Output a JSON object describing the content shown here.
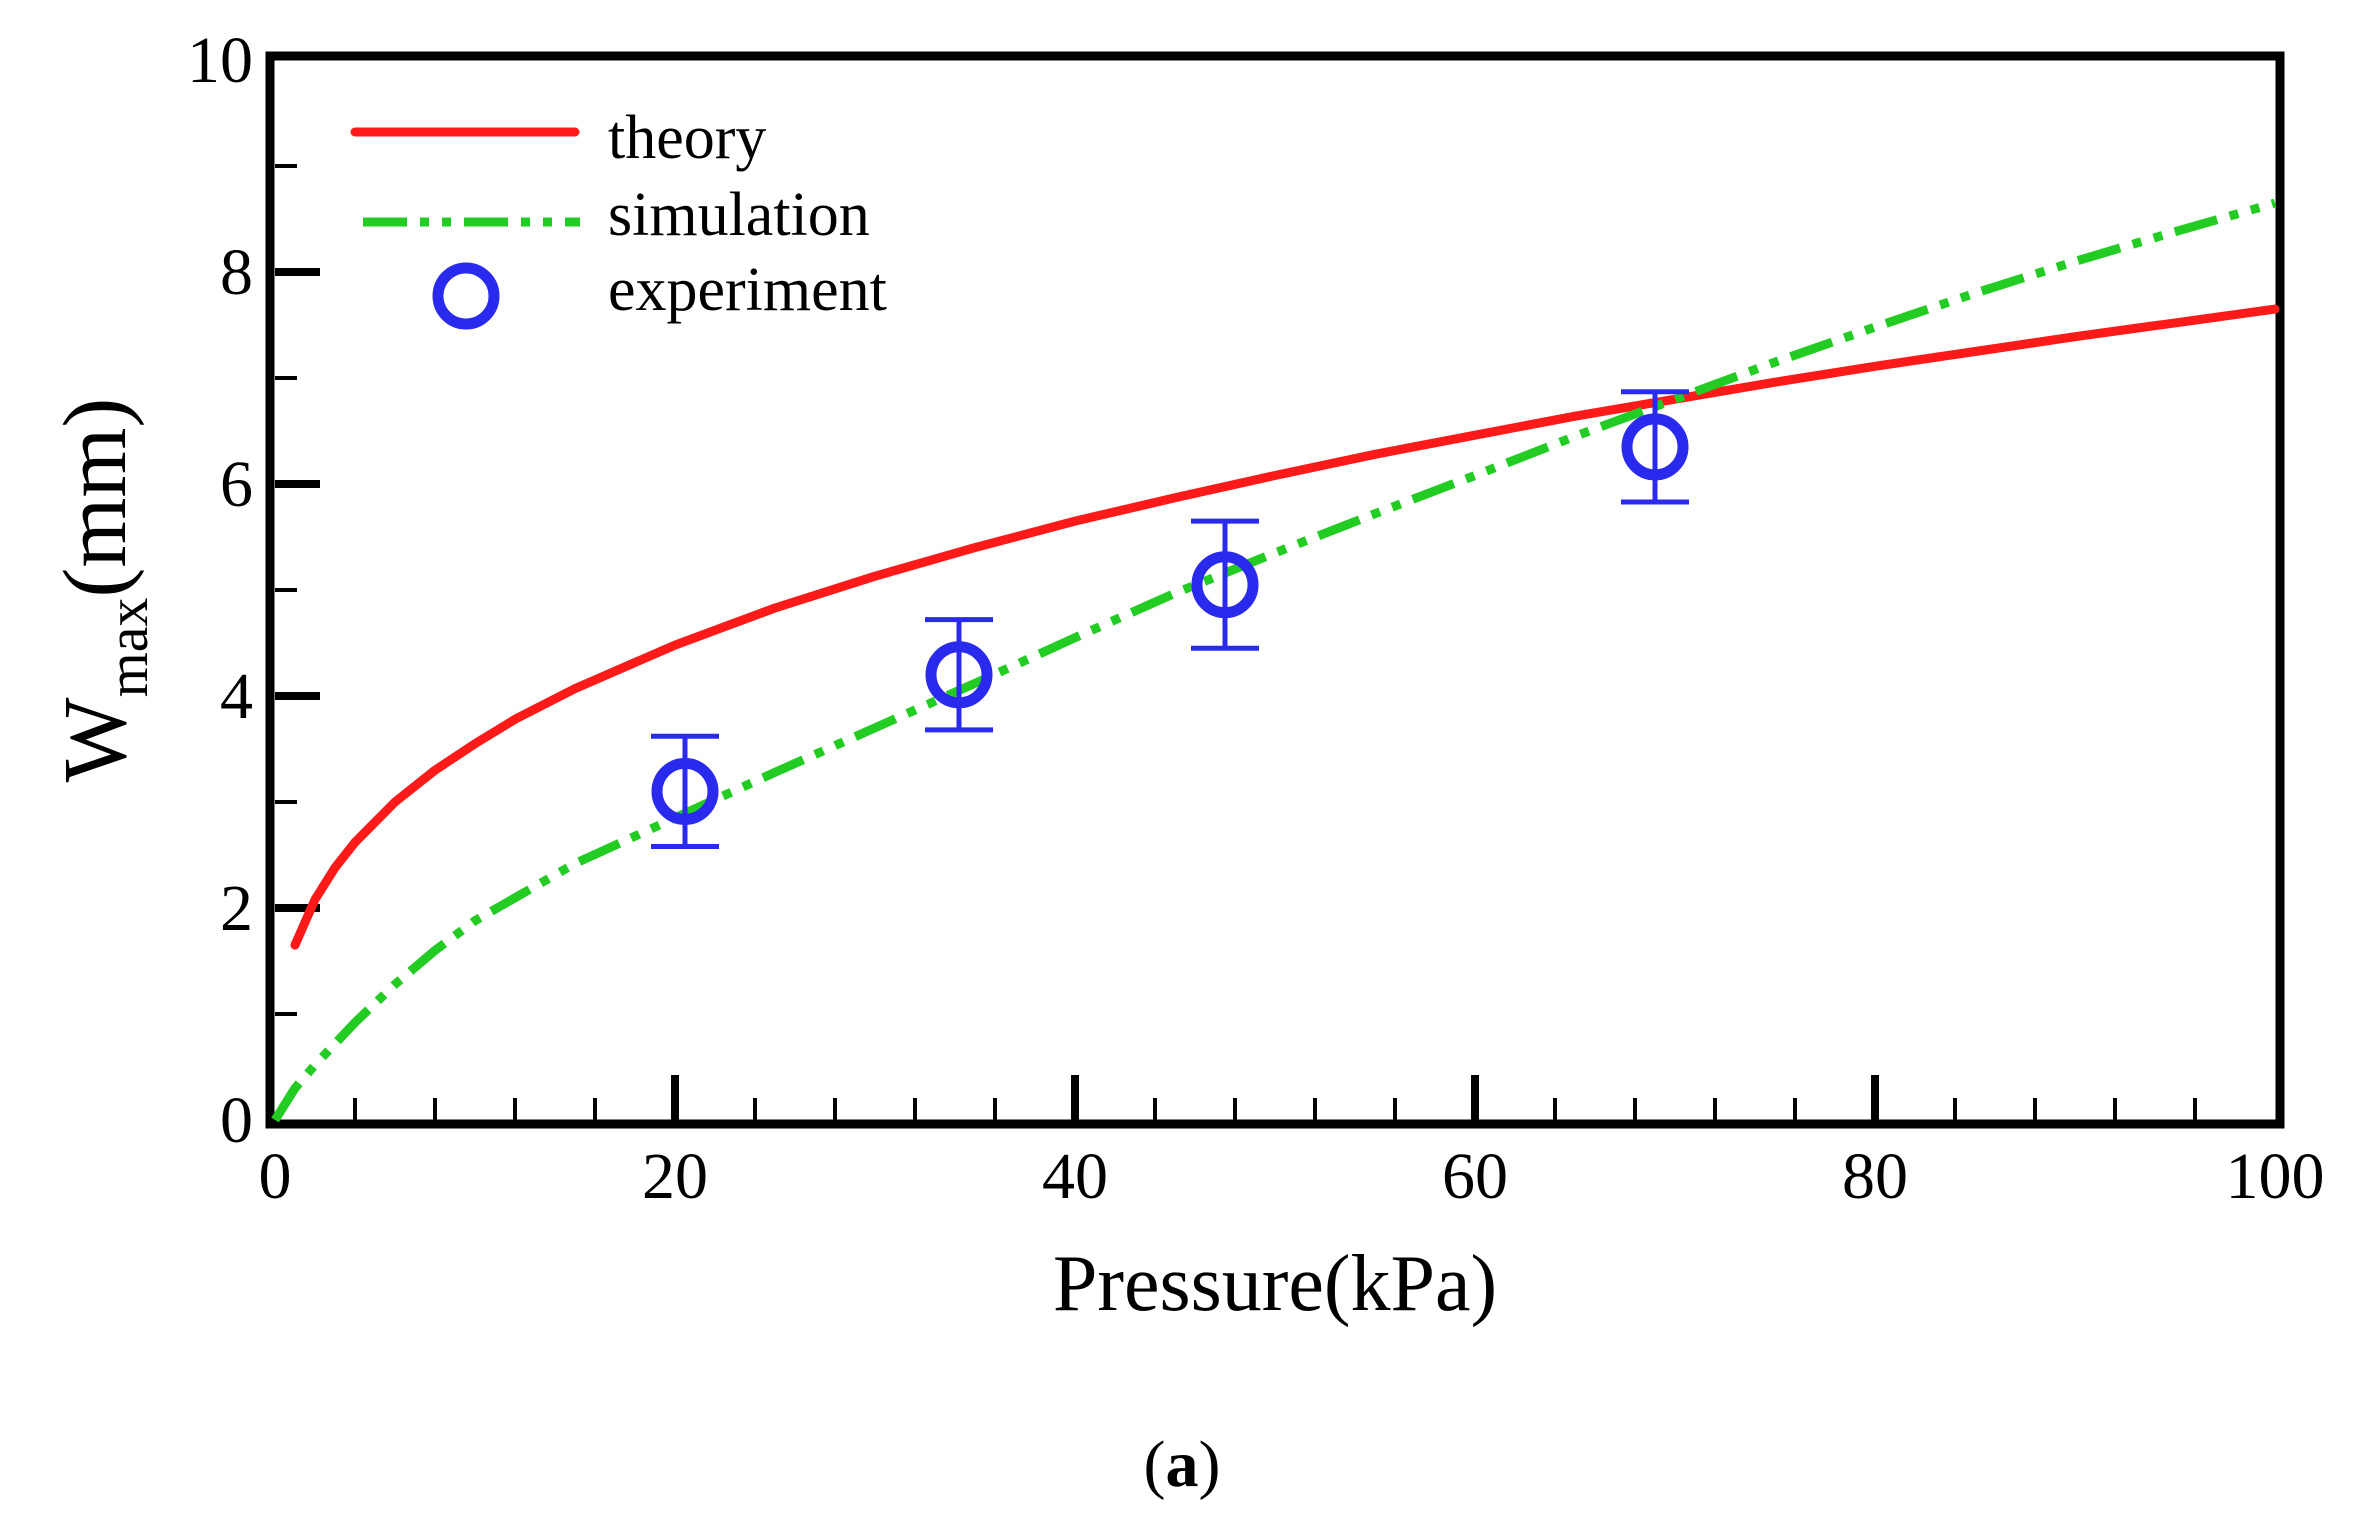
{
  "chart_data": {
    "type": "line",
    "title": "",
    "xlabel": "Pressure(kPa)",
    "ylabel_main": "W",
    "ylabel_sub": "max",
    "ylabel_unit": "(mm)",
    "xlim": [
      0,
      100
    ],
    "ylim": [
      0,
      10
    ],
    "x_major_ticks": [
      0,
      20,
      40,
      60,
      80,
      100
    ],
    "x_tick_labels": [
      "0",
      "20",
      "40",
      "60",
      "80",
      "100"
    ],
    "x_minor_step": 4,
    "y_major_ticks": [
      0,
      2,
      4,
      6,
      8,
      10
    ],
    "y_tick_labels": [
      "0",
      "2",
      "4",
      "6",
      "8",
      "10"
    ],
    "y_minor_step": 1,
    "grid": false,
    "legend_position": "top-left",
    "series": [
      {
        "name": "theory",
        "style": "solid",
        "color": "#ff1a1a",
        "x": [
          1,
          2,
          3,
          4,
          6,
          8,
          10,
          12,
          15,
          20,
          25,
          30,
          35,
          40,
          45,
          50,
          55,
          60,
          65,
          70,
          75,
          80,
          85,
          90,
          95,
          100
        ],
        "y": [
          1.65,
          2.08,
          2.38,
          2.62,
          3.0,
          3.3,
          3.55,
          3.78,
          4.07,
          4.48,
          4.83,
          5.13,
          5.4,
          5.65,
          5.87,
          6.08,
          6.28,
          6.46,
          6.64,
          6.8,
          6.96,
          7.11,
          7.25,
          7.39,
          7.52,
          7.65
        ]
      },
      {
        "name": "simulation",
        "style": "dash-dot-dot",
        "color": "#22cc22",
        "x": [
          0,
          1,
          2,
          4,
          6,
          8,
          10,
          15,
          20,
          25,
          30,
          35,
          40,
          45,
          50,
          55,
          60,
          65,
          70,
          75,
          80,
          85,
          90,
          95,
          100
        ],
        "y": [
          0.0,
          0.3,
          0.52,
          0.92,
          1.28,
          1.6,
          1.88,
          2.42,
          2.85,
          3.28,
          3.7,
          4.12,
          4.55,
          4.97,
          5.35,
          5.72,
          6.08,
          6.45,
          6.8,
          7.15,
          7.48,
          7.8,
          8.1,
          8.38,
          8.65
        ]
      },
      {
        "name": "experiment",
        "style": "markers",
        "color": "#2a2aee",
        "x": [
          20.5,
          34.2,
          47.5,
          69.0
        ],
        "y": [
          3.1,
          4.2,
          5.05,
          6.35
        ],
        "error": [
          0.52,
          0.52,
          0.6,
          0.52
        ]
      }
    ],
    "panel_label": "a"
  }
}
